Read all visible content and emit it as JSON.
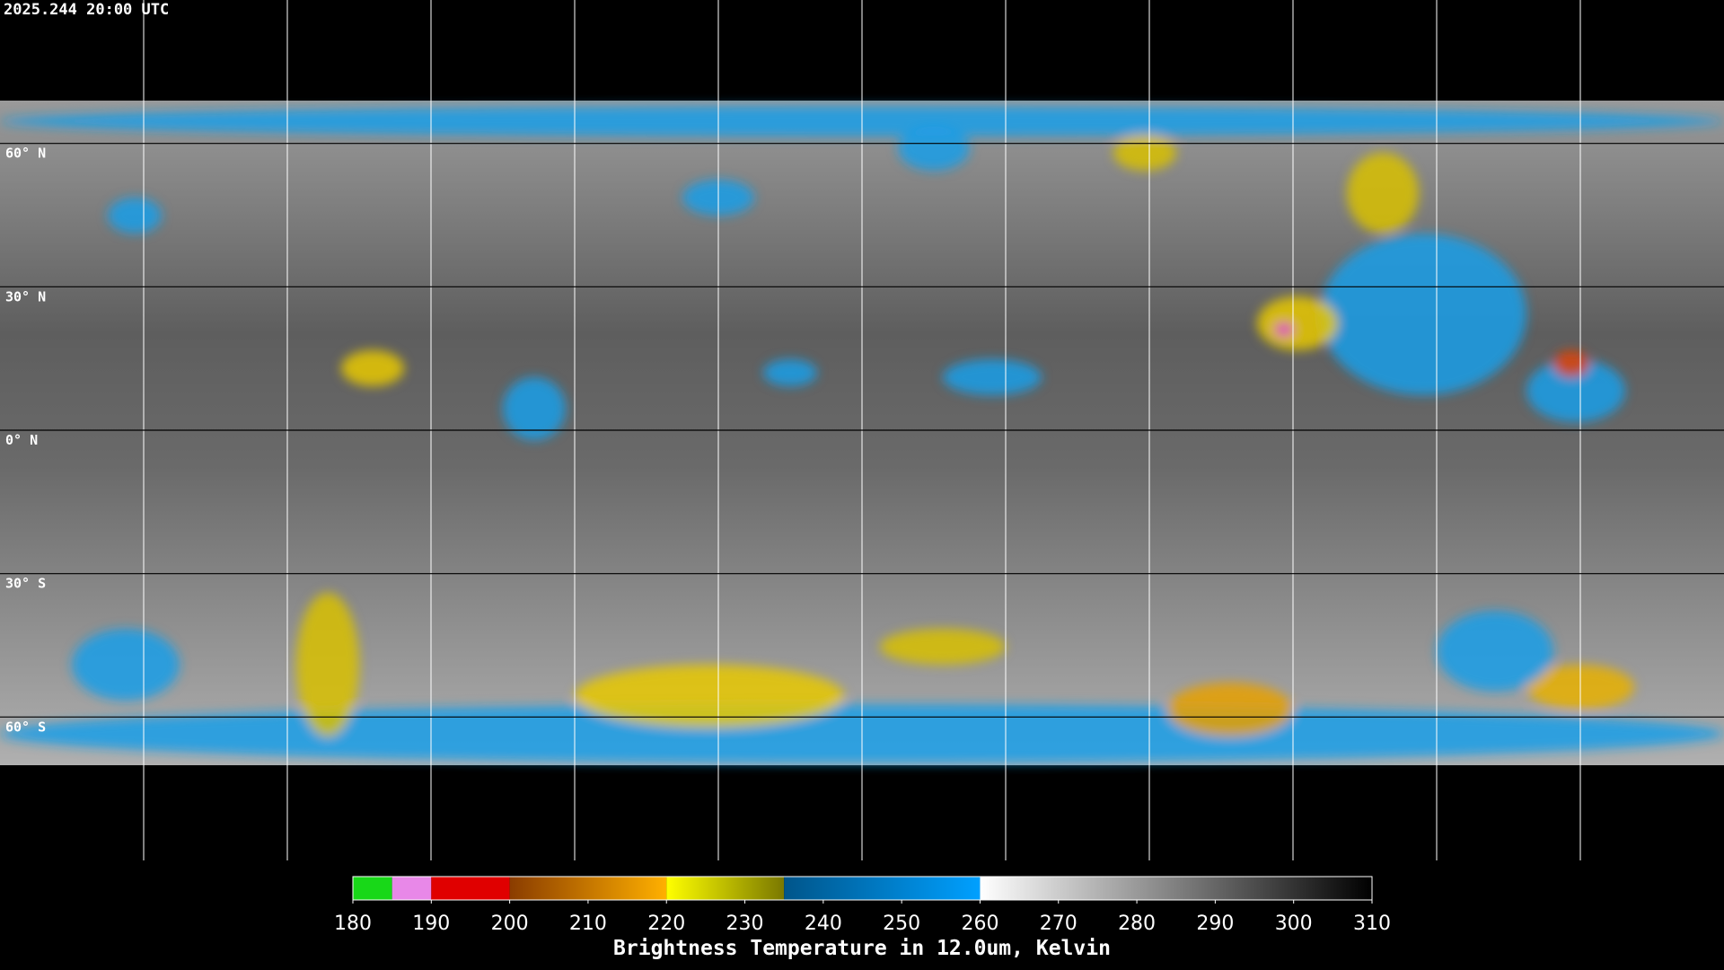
{
  "timestamp": "2025.244 20:00 UTC",
  "map": {
    "lat_lines": [
      {
        "value": 60,
        "label": "60° N"
      },
      {
        "value": 30,
        "label": "30° N"
      },
      {
        "value": 0,
        "label": "0° N"
      },
      {
        "value": -30,
        "label": "30° S"
      },
      {
        "value": -60,
        "label": "60° S"
      }
    ]
  },
  "colorbar": {
    "title": "Brightness Temperature in 12.0um, Kelvin",
    "lim": [
      180,
      310
    ],
    "ticks": [
      180,
      190,
      200,
      210,
      220,
      230,
      240,
      250,
      260,
      270,
      280,
      290,
      300,
      310
    ],
    "segments": [
      {
        "from": 180,
        "to": 185,
        "colors": [
          "#18d818",
          "#18d818"
        ]
      },
      {
        "from": 185,
        "to": 190,
        "colors": [
          "#e888e8",
          "#e888e8"
        ]
      },
      {
        "from": 190,
        "to": 200,
        "colors": [
          "#e00000",
          "#e00000"
        ]
      },
      {
        "from": 200,
        "to": 220,
        "colors": [
          "#8a3c00",
          "#ffb000"
        ]
      },
      {
        "from": 220,
        "to": 235,
        "colors": [
          "#ffff00",
          "#7a7800"
        ]
      },
      {
        "from": 235,
        "to": 260,
        "colors": [
          "#00558a",
          "#00a0ff"
        ]
      },
      {
        "from": 260,
        "to": 310,
        "colors": [
          "#ffffff",
          "#000000"
        ]
      }
    ]
  }
}
